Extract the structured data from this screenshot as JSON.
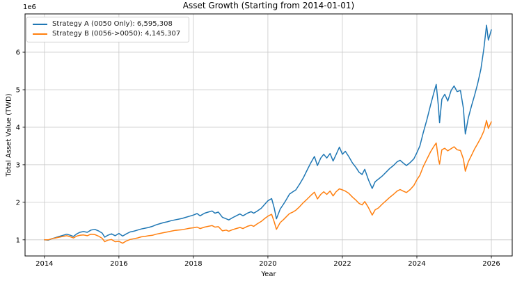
{
  "title": "Asset Growth (Starting from 2014-01-01)",
  "offset_label": "1e6",
  "x_axis_label": "Year",
  "y_axis_label": "Total Asset Value (TWD)",
  "legend": {
    "position": "upper left",
    "items": [
      {
        "label": "Strategy A (0050 Only): 6,595,308",
        "color": "#1f77b4"
      },
      {
        "label": "Strategy B (0056->0050): 4,145,307",
        "color": "#ff7f0e"
      }
    ]
  },
  "colors": {
    "strategy_a": "#1f77b4",
    "strategy_b": "#ff7f0e",
    "grid": "#c8c8c8",
    "spine": "#000000",
    "text": "#000000",
    "background": "#ffffff"
  },
  "chart_data": {
    "type": "line",
    "title": "Asset Growth (Starting from 2014-01-01)",
    "xlabel": "Year",
    "ylabel": "Total Asset Value (TWD)",
    "y_unit_multiplier": "1e6",
    "grid": true,
    "legend_position": "upper left",
    "xlim": [
      2013.48,
      2026.56
    ],
    "ylim_e6": [
      0.57,
      7.02
    ],
    "xticks": [
      2014,
      2016,
      2018,
      2020,
      2022,
      2024,
      2026
    ],
    "yticks_e6": [
      1,
      2,
      3,
      4,
      5,
      6
    ],
    "x_years": [
      2014.0,
      2014.1,
      2014.2,
      2014.3,
      2014.4,
      2014.5,
      2014.6,
      2014.7,
      2014.78,
      2014.87,
      2014.95,
      2015.05,
      2015.15,
      2015.25,
      2015.35,
      2015.45,
      2015.55,
      2015.62,
      2015.7,
      2015.8,
      2015.9,
      2016.0,
      2016.1,
      2016.2,
      2016.3,
      2016.4,
      2016.5,
      2016.6,
      2016.7,
      2016.8,
      2016.9,
      2017.0,
      2017.1,
      2017.2,
      2017.3,
      2017.4,
      2017.5,
      2017.6,
      2017.7,
      2017.8,
      2017.9,
      2018.0,
      2018.1,
      2018.18,
      2018.3,
      2018.4,
      2018.5,
      2018.58,
      2018.67,
      2018.78,
      2018.88,
      2018.95,
      2019.05,
      2019.15,
      2019.25,
      2019.33,
      2019.45,
      2019.55,
      2019.62,
      2019.72,
      2019.82,
      2019.92,
      2020.0,
      2020.1,
      2020.17,
      2020.23,
      2020.33,
      2020.42,
      2020.5,
      2020.58,
      2020.67,
      2020.75,
      2020.85,
      2020.95,
      2021.05,
      2021.15,
      2021.25,
      2021.33,
      2021.42,
      2021.5,
      2021.58,
      2021.67,
      2021.75,
      2021.83,
      2021.92,
      2022.0,
      2022.08,
      2022.17,
      2022.27,
      2022.37,
      2022.45,
      2022.53,
      2022.6,
      2022.7,
      2022.8,
      2022.88,
      2022.97,
      2023.07,
      2023.17,
      2023.27,
      2023.37,
      2023.47,
      2023.55,
      2023.63,
      2023.72,
      2023.82,
      2023.92,
      2024.0,
      2024.08,
      2024.17,
      2024.27,
      2024.37,
      2024.45,
      2024.52,
      2024.58,
      2024.61,
      2024.67,
      2024.75,
      2024.83,
      2024.92,
      2025.0,
      2025.08,
      2025.17,
      2025.25,
      2025.3,
      2025.38,
      2025.47,
      2025.55,
      2025.63,
      2025.72,
      2025.8,
      2025.87,
      2025.92,
      2026.0
    ],
    "series": [
      {
        "name": "Strategy A (0050 Only)",
        "final_value_label": "6,595,308",
        "color": "#1f77b4",
        "values_e6": [
          1.0,
          0.99,
          1.03,
          1.06,
          1.09,
          1.12,
          1.15,
          1.12,
          1.09,
          1.16,
          1.2,
          1.22,
          1.2,
          1.26,
          1.28,
          1.24,
          1.18,
          1.07,
          1.12,
          1.16,
          1.11,
          1.17,
          1.1,
          1.16,
          1.21,
          1.23,
          1.26,
          1.29,
          1.31,
          1.33,
          1.36,
          1.4,
          1.43,
          1.46,
          1.48,
          1.51,
          1.53,
          1.55,
          1.57,
          1.6,
          1.63,
          1.66,
          1.7,
          1.64,
          1.71,
          1.74,
          1.77,
          1.71,
          1.74,
          1.6,
          1.56,
          1.53,
          1.59,
          1.64,
          1.69,
          1.64,
          1.71,
          1.75,
          1.71,
          1.77,
          1.84,
          1.95,
          2.04,
          2.1,
          1.85,
          1.56,
          1.82,
          1.95,
          2.08,
          2.22,
          2.28,
          2.33,
          2.48,
          2.65,
          2.85,
          3.05,
          3.22,
          2.98,
          3.18,
          3.28,
          3.18,
          3.3,
          3.1,
          3.27,
          3.47,
          3.28,
          3.36,
          3.22,
          3.05,
          2.92,
          2.8,
          2.74,
          2.88,
          2.6,
          2.37,
          2.55,
          2.62,
          2.7,
          2.8,
          2.9,
          2.98,
          3.08,
          3.12,
          3.05,
          2.98,
          3.06,
          3.16,
          3.32,
          3.5,
          3.85,
          4.2,
          4.6,
          4.9,
          5.14,
          4.55,
          4.12,
          4.75,
          4.88,
          4.7,
          4.98,
          5.1,
          4.95,
          4.98,
          4.5,
          3.82,
          4.25,
          4.58,
          4.85,
          5.15,
          5.55,
          6.1,
          6.72,
          6.32,
          6.595
        ]
      },
      {
        "name": "Strategy B (0056->0050)",
        "final_value_label": "4,145,307",
        "color": "#ff7f0e",
        "values_e6": [
          1.0,
          1.0,
          1.03,
          1.05,
          1.07,
          1.09,
          1.11,
          1.08,
          1.05,
          1.1,
          1.12,
          1.13,
          1.11,
          1.15,
          1.14,
          1.1,
          1.04,
          0.95,
          0.99,
          1.01,
          0.95,
          0.96,
          0.91,
          0.97,
          1.01,
          1.03,
          1.05,
          1.08,
          1.09,
          1.11,
          1.12,
          1.15,
          1.17,
          1.19,
          1.21,
          1.23,
          1.25,
          1.26,
          1.27,
          1.29,
          1.31,
          1.32,
          1.34,
          1.3,
          1.34,
          1.36,
          1.38,
          1.34,
          1.35,
          1.24,
          1.26,
          1.23,
          1.27,
          1.3,
          1.33,
          1.3,
          1.36,
          1.39,
          1.36,
          1.43,
          1.49,
          1.57,
          1.63,
          1.68,
          1.48,
          1.28,
          1.46,
          1.54,
          1.62,
          1.7,
          1.74,
          1.79,
          1.88,
          1.99,
          2.08,
          2.18,
          2.27,
          2.09,
          2.21,
          2.28,
          2.21,
          2.3,
          2.17,
          2.28,
          2.36,
          2.33,
          2.3,
          2.24,
          2.14,
          2.05,
          1.97,
          1.93,
          2.02,
          1.86,
          1.66,
          1.8,
          1.85,
          1.95,
          2.04,
          2.13,
          2.21,
          2.3,
          2.34,
          2.3,
          2.26,
          2.34,
          2.45,
          2.6,
          2.72,
          2.95,
          3.15,
          3.35,
          3.48,
          3.58,
          3.15,
          3.02,
          3.4,
          3.44,
          3.37,
          3.43,
          3.48,
          3.4,
          3.38,
          3.15,
          2.83,
          3.08,
          3.26,
          3.42,
          3.56,
          3.72,
          3.9,
          4.18,
          3.97,
          4.145
        ]
      }
    ]
  }
}
